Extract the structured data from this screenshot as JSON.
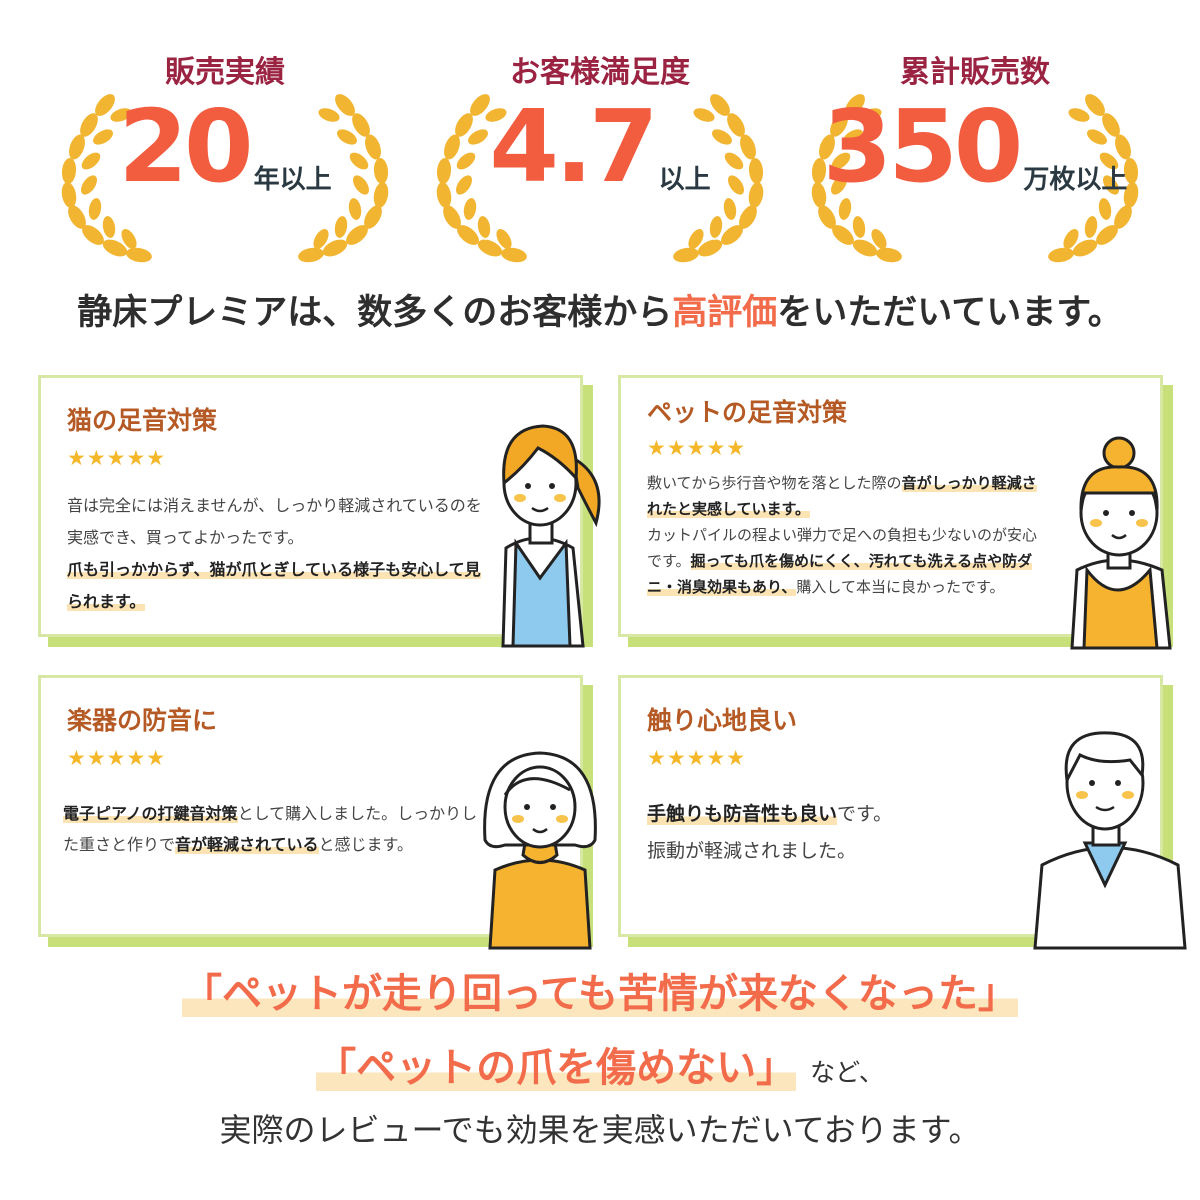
{
  "stats": [
    {
      "label": "販売実績",
      "value": "20",
      "unit": "年以上"
    },
    {
      "label": "お客様満足度",
      "value": "4.7",
      "unit": "以上"
    },
    {
      "label": "累計販売数",
      "value": "350",
      "unit": "万枚以上"
    }
  ],
  "headline": {
    "before": "静床プレミアは、数多くのお客様から",
    "highlight": "高評価",
    "after": "をいただいています。"
  },
  "reviews": [
    {
      "title": "猫の足音対策",
      "stars": "★★★★★",
      "rating": 5,
      "body": [
        {
          "text": "音は完全には消えませんが、しっかり軽減されているのを実感でき、買ってよかったです。",
          "em": false
        },
        {
          "text": "爪も引っかからず、猫が爪とぎしている様子も安心して見られます。",
          "em": true
        }
      ]
    },
    {
      "title": "ペットの足音対策",
      "stars": "★★★★★",
      "rating": 5,
      "body": [
        {
          "text": "敷いてから歩行音や物を落とした際の",
          "em": false
        },
        {
          "text": "音がしっかり軽減されたと実感しています。",
          "em": true
        },
        {
          "text": "カットパイルの程よい弾力で足への負担も少ないのが安心です。",
          "em": false
        },
        {
          "text": "掘っても爪を傷めにくく、汚れても洗える点や防ダニ・消臭効果もあり、",
          "em": true
        },
        {
          "text": "購入して本当に良かったです。",
          "em": false
        }
      ]
    },
    {
      "title": "楽器の防音に",
      "stars": "★★★★★",
      "rating": 5,
      "body": [
        {
          "text": "電子ピアノの打鍵音対策",
          "em": true
        },
        {
          "text": "として購入しました。しっかりした重さと作りで",
          "em": false
        },
        {
          "text": "音が軽減されている",
          "em": true
        },
        {
          "text": "と感じます。",
          "em": false
        }
      ]
    },
    {
      "title": "触り心地良い",
      "stars": "★★★★★",
      "rating": 5,
      "body": [
        {
          "text": "手触りも防音性も良い",
          "em": true
        },
        {
          "text": "です。",
          "em": false
        },
        {
          "text": "振動が軽減されました。",
          "em": false
        }
      ]
    }
  ],
  "closing": {
    "quote1": "「ペットが走り回っても苦情が来なくなった」",
    "quote2": "「ペットの爪を傷めない」",
    "quote2_tail": "など、",
    "line3": "実際のレビューでも効果を実感いただいております。"
  },
  "colors": {
    "accent": "#f26b4a",
    "label": "#9b2342",
    "laurel": "#f2b531",
    "card_border": "#d6e8a4",
    "card_shadow": "#c8e07a",
    "title": "#b55a25",
    "star": "#f5b72a",
    "highlight": "#fbe3b3"
  }
}
